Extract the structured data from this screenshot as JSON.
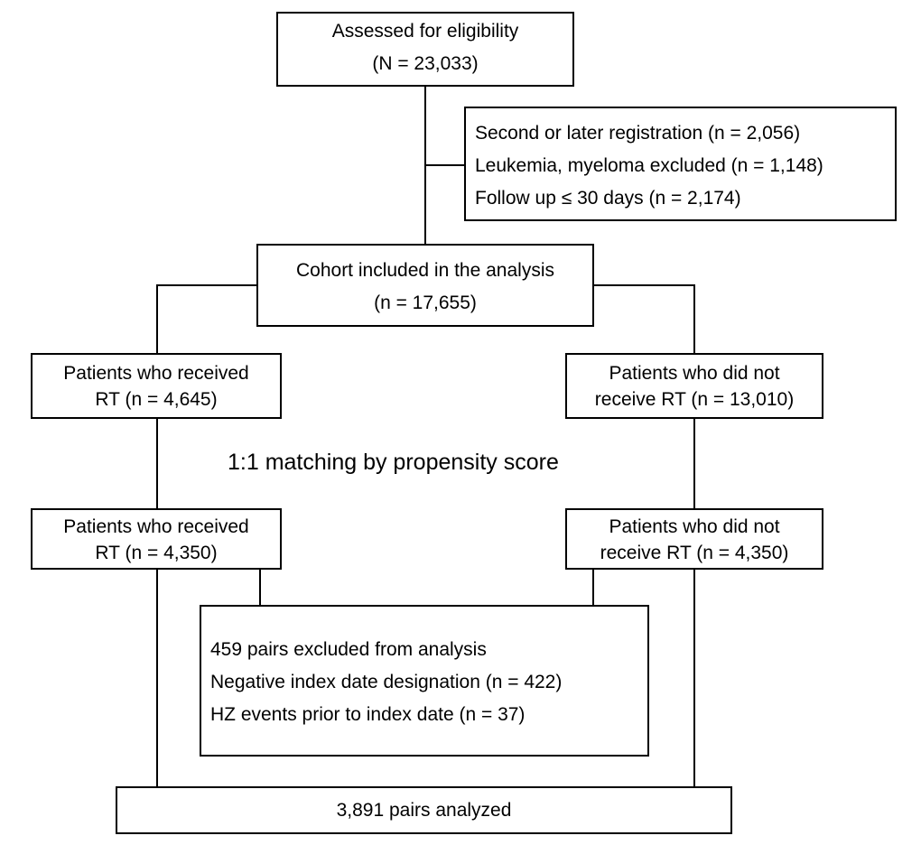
{
  "eligibility": {
    "line1": "Assessed for eligibility",
    "line2": "(N = 23,033)"
  },
  "exclusions_initial": {
    "items": [
      "Second or later registration (n = 2,056)",
      "Leukemia, myeloma excluded (n = 1,148)",
      "Follow up ≤ 30 days  (n = 2,174)"
    ]
  },
  "cohort": {
    "line1": "Cohort included in the analysis",
    "line2": "(n = 17,655)"
  },
  "before_matching": {
    "rt": {
      "line1": "Patients who received",
      "line2": "RT (n = 4,645)"
    },
    "no_rt": {
      "line1": "Patients who did not",
      "line2": "receive RT (n = 13,010)"
    }
  },
  "matching_label": "1:1 matching by propensity score",
  "after_matching": {
    "rt": {
      "line1": "Patients who received",
      "line2": "RT (n = 4,350)"
    },
    "no_rt": {
      "line1": "Patients who did not",
      "line2": "receive RT (n = 4,350)"
    }
  },
  "exclusions_pairs": {
    "items": [
      "459 pairs excluded from analysis",
      "Negative index date designation  (n = 422)",
      "HZ events prior to index date  (n = 37)"
    ]
  },
  "final": "3,891 pairs analyzed",
  "colors": {
    "stroke": "#000000",
    "background": "#ffffff"
  }
}
